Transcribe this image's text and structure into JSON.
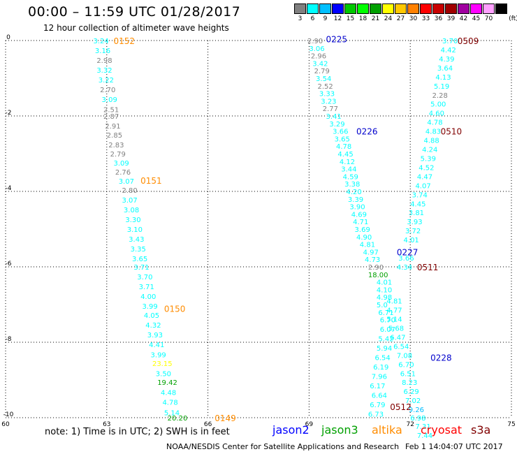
{
  "header": {
    "title": "00:00 – 11:59 UTC 01/28/2017",
    "subtitle": "12 hour collection of altimeter wave heights"
  },
  "legend": {
    "units": "(ft)",
    "bins": [
      {
        "label": "3",
        "color": "#808080"
      },
      {
        "label": "6",
        "color": "#00ffff"
      },
      {
        "label": "9",
        "color": "#00bfff"
      },
      {
        "label": "12",
        "color": "#0000ff"
      },
      {
        "label": "15",
        "color": "#00c800"
      },
      {
        "label": "18",
        "color": "#00ff00"
      },
      {
        "label": "21",
        "color": "#00a000"
      },
      {
        "label": "24",
        "color": "#ffff00"
      },
      {
        "label": "27",
        "color": "#ffc800"
      },
      {
        "label": "30",
        "color": "#ff8000"
      },
      {
        "label": "33",
        "color": "#ff0000"
      },
      {
        "label": "36",
        "color": "#c80000"
      },
      {
        "label": "39",
        "color": "#a00000"
      },
      {
        "label": "42",
        "color": "#a000a0"
      },
      {
        "label": "45",
        "color": "#ff00ff"
      },
      {
        "label": "70",
        "color": "#ffa0ff"
      },
      {
        "label": "",
        "color": "#000000"
      }
    ]
  },
  "axes": {
    "x_ticks": [
      "60",
      "63",
      "66",
      "69",
      "72",
      "75"
    ],
    "y_ticks": [
      "0",
      "-2",
      "-4",
      "-6",
      "-8",
      "-10"
    ],
    "x_values": [
      60,
      63,
      66,
      69,
      72,
      75
    ],
    "y_values": [
      0,
      -2,
      -4,
      -6,
      -8,
      -10
    ],
    "xlim": [
      60,
      75
    ],
    "ylim": [
      -10,
      0
    ]
  },
  "passes": [
    {
      "label": "0152",
      "color": "#ff8c00",
      "lon": 63.2,
      "lat": 0.0
    },
    {
      "label": "0151",
      "color": "#ff8c00",
      "lon": 64.0,
      "lat": -3.7
    },
    {
      "label": "0150",
      "color": "#ff8c00",
      "lon": 64.7,
      "lat": -7.1
    },
    {
      "label": "0149",
      "color": "#ff8c00",
      "lon": 66.2,
      "lat": -10.0
    },
    {
      "label": "0225",
      "color": "#0000cc",
      "lon": 69.5,
      "lat": 0.05
    },
    {
      "label": "0226",
      "color": "#0000cc",
      "lon": 70.4,
      "lat": -2.4
    },
    {
      "label": "0227",
      "color": "#0000cc",
      "lon": 71.6,
      "lat": -5.6
    },
    {
      "label": "0228",
      "color": "#0000cc",
      "lon": 72.6,
      "lat": -8.4
    },
    {
      "label": "0509",
      "color": "#800000",
      "lon": 73.4,
      "lat": 0.0
    },
    {
      "label": "0510",
      "color": "#800000",
      "lon": 72.9,
      "lat": -2.4
    },
    {
      "label": "0511",
      "color": "#800000",
      "lon": 72.2,
      "lat": -6.0
    },
    {
      "label": "0512",
      "color": "#800000",
      "lon": 71.4,
      "lat": -9.7
    }
  ],
  "tracks": [
    {
      "name": "track-0152",
      "points": [
        {
          "v": "3.24",
          "lon": 62.6,
          "lat": 0.0,
          "c": "#00ffff"
        },
        {
          "v": "3.16",
          "lon": 62.65,
          "lat": -0.26,
          "c": "#00ffff"
        },
        {
          "v": "2.98",
          "lon": 62.7,
          "lat": -0.52,
          "c": "#808080"
        },
        {
          "v": "3.32",
          "lon": 62.7,
          "lat": -0.78,
          "c": "#00ffff"
        },
        {
          "v": "3.22",
          "lon": 62.75,
          "lat": -1.04,
          "c": "#00ffff"
        },
        {
          "v": "2.70",
          "lon": 62.8,
          "lat": -1.3,
          "c": "#808080"
        },
        {
          "v": "3.09",
          "lon": 62.85,
          "lat": -1.56,
          "c": "#00ffff"
        },
        {
          "v": "2.51",
          "lon": 62.9,
          "lat": -1.82,
          "c": "#808080"
        },
        {
          "v": "2.87",
          "lon": 62.9,
          "lat": -2.0,
          "c": "#808080"
        },
        {
          "v": "2.91",
          "lon": 62.95,
          "lat": -2.26,
          "c": "#808080"
        },
        {
          "v": "2.85",
          "lon": 63.0,
          "lat": -2.5,
          "c": "#808080"
        },
        {
          "v": "2.83",
          "lon": 63.05,
          "lat": -2.76,
          "c": "#808080"
        },
        {
          "v": "2.79",
          "lon": 63.1,
          "lat": -3.0,
          "c": "#808080"
        }
      ]
    },
    {
      "name": "track-0151",
      "points": [
        {
          "v": "3.09",
          "lon": 63.2,
          "lat": -3.24,
          "c": "#00ffff"
        },
        {
          "v": "2.76",
          "lon": 63.25,
          "lat": -3.48,
          "c": "#808080"
        },
        {
          "v": "3.07",
          "lon": 63.35,
          "lat": -3.72,
          "c": "#00ffff"
        },
        {
          "v": "2.80",
          "lon": 63.45,
          "lat": -3.96,
          "c": "#808080"
        },
        {
          "v": "3.07",
          "lon": 63.45,
          "lat": -4.22,
          "c": "#00ffff"
        },
        {
          "v": "3.08",
          "lon": 63.5,
          "lat": -4.48,
          "c": "#00ffff"
        },
        {
          "v": "3.30",
          "lon": 63.55,
          "lat": -4.74,
          "c": "#00ffff"
        },
        {
          "v": "3.10",
          "lon": 63.6,
          "lat": -5.0,
          "c": "#00ffff"
        },
        {
          "v": "3.43",
          "lon": 63.65,
          "lat": -5.26,
          "c": "#00ffff"
        },
        {
          "v": "3.35",
          "lon": 63.7,
          "lat": -5.52,
          "c": "#00ffff"
        },
        {
          "v": "3.65",
          "lon": 63.75,
          "lat": -5.78,
          "c": "#00ffff"
        },
        {
          "v": "3.71",
          "lon": 63.8,
          "lat": -6.0,
          "c": "#00ffff"
        }
      ]
    },
    {
      "name": "track-0150",
      "points": [
        {
          "v": "3.70",
          "lon": 63.9,
          "lat": -6.26,
          "c": "#00ffff"
        },
        {
          "v": "3.71",
          "lon": 63.95,
          "lat": -6.52,
          "c": "#00ffff"
        },
        {
          "v": "4.00",
          "lon": 64.0,
          "lat": -6.78,
          "c": "#00ffff"
        },
        {
          "v": "3.99",
          "lon": 64.05,
          "lat": -7.04,
          "c": "#00ffff"
        },
        {
          "v": "4.05",
          "lon": 64.1,
          "lat": -7.28,
          "c": "#00ffff"
        },
        {
          "v": "4.32",
          "lon": 64.15,
          "lat": -7.54,
          "c": "#00ffff"
        },
        {
          "v": "3.93",
          "lon": 64.2,
          "lat": -7.8,
          "c": "#00ffff"
        },
        {
          "v": "4.41",
          "lon": 64.25,
          "lat": -8.06,
          "c": "#00ffff"
        },
        {
          "v": "3.99",
          "lon": 64.3,
          "lat": -8.32,
          "c": "#00ffff"
        },
        {
          "v": "23.15",
          "lon": 64.35,
          "lat": -8.56,
          "c": "#ffff00"
        },
        {
          "v": "3.50",
          "lon": 64.45,
          "lat": -8.82,
          "c": "#00ffff"
        },
        {
          "v": "19.42",
          "lon": 64.5,
          "lat": -9.06,
          "c": "#00a000"
        },
        {
          "v": "4.48",
          "lon": 64.6,
          "lat": -9.32,
          "c": "#00ffff"
        },
        {
          "v": "4.78",
          "lon": 64.65,
          "lat": -9.58,
          "c": "#00ffff"
        },
        {
          "v": "5.14",
          "lon": 64.7,
          "lat": -9.86,
          "c": "#00ffff"
        },
        {
          "v": "20.20",
          "lon": 64.8,
          "lat": -10.0,
          "c": "#00a000"
        }
      ]
    },
    {
      "name": "track-0225",
      "points": [
        {
          "v": "2.90",
          "lon": 68.95,
          "lat": 0.0,
          "c": "#808080"
        },
        {
          "v": "3.06",
          "lon": 69.0,
          "lat": -0.2,
          "c": "#00ffff"
        },
        {
          "v": "2.96",
          "lon": 69.05,
          "lat": -0.4,
          "c": "#808080"
        },
        {
          "v": "3.42",
          "lon": 69.1,
          "lat": -0.6,
          "c": "#00ffff"
        },
        {
          "v": "2.79",
          "lon": 69.15,
          "lat": -0.8,
          "c": "#808080"
        },
        {
          "v": "3.54",
          "lon": 69.2,
          "lat": -1.0,
          "c": "#00ffff"
        },
        {
          "v": "2.52",
          "lon": 69.25,
          "lat": -1.2,
          "c": "#808080"
        },
        {
          "v": "3.33",
          "lon": 69.3,
          "lat": -1.4,
          "c": "#00ffff"
        },
        {
          "v": "3.23",
          "lon": 69.35,
          "lat": -1.6,
          "c": "#00ffff"
        },
        {
          "v": "2.77",
          "lon": 69.4,
          "lat": -1.8,
          "c": "#808080"
        },
        {
          "v": "3.41",
          "lon": 69.5,
          "lat": -2.0,
          "c": "#00ffff"
        },
        {
          "v": "3.29",
          "lon": 69.6,
          "lat": -2.2,
          "c": "#00ffff"
        },
        {
          "v": "3.66",
          "lon": 69.7,
          "lat": -2.4,
          "c": "#00ffff"
        }
      ]
    },
    {
      "name": "track-0226",
      "points": [
        {
          "v": "3.65",
          "lon": 69.75,
          "lat": -2.6,
          "c": "#00ffff"
        },
        {
          "v": "4.78",
          "lon": 69.8,
          "lat": -2.8,
          "c": "#00ffff"
        },
        {
          "v": "4.45",
          "lon": 69.85,
          "lat": -3.0,
          "c": "#00ffff"
        },
        {
          "v": "4.12",
          "lon": 69.9,
          "lat": -3.2,
          "c": "#00ffff"
        },
        {
          "v": "3.44",
          "lon": 69.95,
          "lat": -3.4,
          "c": "#00ffff"
        },
        {
          "v": "4.59",
          "lon": 70.0,
          "lat": -3.6,
          "c": "#00ffff"
        },
        {
          "v": "3.38",
          "lon": 70.05,
          "lat": -3.8,
          "c": "#00ffff"
        },
        {
          "v": "4.20",
          "lon": 70.1,
          "lat": -4.0,
          "c": "#00ffff"
        },
        {
          "v": "3.39",
          "lon": 70.15,
          "lat": -4.2,
          "c": "#00ffff"
        },
        {
          "v": "3.90",
          "lon": 70.2,
          "lat": -4.4,
          "c": "#00ffff"
        },
        {
          "v": "4.69",
          "lon": 70.25,
          "lat": -4.6,
          "c": "#00ffff"
        },
        {
          "v": "4.71",
          "lon": 70.3,
          "lat": -4.8,
          "c": "#00ffff"
        },
        {
          "v": "3.69",
          "lon": 70.35,
          "lat": -5.0,
          "c": "#00ffff"
        },
        {
          "v": "4.90",
          "lon": 70.4,
          "lat": -5.2,
          "c": "#00ffff"
        },
        {
          "v": "4.81",
          "lon": 70.5,
          "lat": -5.4,
          "c": "#00ffff"
        },
        {
          "v": "4.97",
          "lon": 70.6,
          "lat": -5.6,
          "c": "#00ffff"
        },
        {
          "v": "4.73",
          "lon": 70.65,
          "lat": -5.8,
          "c": "#00ffff"
        },
        {
          "v": "2.90",
          "lon": 70.75,
          "lat": -6.0,
          "c": "#808080"
        },
        {
          "v": "18.00",
          "lon": 70.75,
          "lat": -6.2,
          "c": "#00a000"
        }
      ]
    },
    {
      "name": "track-0227",
      "points": [
        {
          "v": "4.01",
          "lon": 71.0,
          "lat": -6.4,
          "c": "#00ffff"
        },
        {
          "v": "4.10",
          "lon": 71.0,
          "lat": -6.6,
          "c": "#00ffff"
        },
        {
          "v": "4.98",
          "lon": 71.0,
          "lat": -6.8,
          "c": "#00ffff"
        },
        {
          "v": "5.0",
          "lon": 71.0,
          "lat": -7.0,
          "c": "#00ffff"
        },
        {
          "v": "6.71",
          "lon": 71.05,
          "lat": -7.2,
          "c": "#00ffff"
        },
        {
          "v": "6.70",
          "lon": 71.1,
          "lat": -7.4,
          "c": "#00ffff"
        },
        {
          "v": "6.07",
          "lon": 71.1,
          "lat": -7.65,
          "c": "#00ffff"
        },
        {
          "v": "5.42",
          "lon": 71.05,
          "lat": -7.9,
          "c": "#00ffff"
        },
        {
          "v": "5.94",
          "lon": 71.0,
          "lat": -8.15,
          "c": "#00ffff"
        },
        {
          "v": "6.54",
          "lon": 70.95,
          "lat": -8.4,
          "c": "#00ffff"
        },
        {
          "v": "6.19",
          "lon": 70.9,
          "lat": -8.65,
          "c": "#00ffff"
        },
        {
          "v": "7.96",
          "lon": 70.85,
          "lat": -8.9,
          "c": "#00ffff"
        },
        {
          "v": "6.17",
          "lon": 70.8,
          "lat": -9.15,
          "c": "#00ffff"
        },
        {
          "v": "6.64",
          "lon": 70.85,
          "lat": -9.4,
          "c": "#00ffff"
        },
        {
          "v": "6.79",
          "lon": 70.8,
          "lat": -9.65,
          "c": "#00ffff"
        },
        {
          "v": "6.73",
          "lon": 70.75,
          "lat": -9.9,
          "c": "#00ffff"
        }
      ]
    },
    {
      "name": "track-0509",
      "points": [
        {
          "v": "3.70",
          "lon": 72.95,
          "lat": 0.0,
          "c": "#00ffff"
        },
        {
          "v": "4.42",
          "lon": 72.9,
          "lat": -0.24,
          "c": "#00ffff"
        },
        {
          "v": "4.39",
          "lon": 72.85,
          "lat": -0.48,
          "c": "#00ffff"
        },
        {
          "v": "3.64",
          "lon": 72.8,
          "lat": -0.72,
          "c": "#00ffff"
        },
        {
          "v": "4.13",
          "lon": 72.75,
          "lat": -0.96,
          "c": "#00ffff"
        },
        {
          "v": "5.19",
          "lon": 72.7,
          "lat": -1.2,
          "c": "#00ffff"
        },
        {
          "v": "2.28",
          "lon": 72.65,
          "lat": -1.44,
          "c": "#808080"
        },
        {
          "v": "5.00",
          "lon": 72.6,
          "lat": -1.68,
          "c": "#00ffff"
        },
        {
          "v": "4.60",
          "lon": 72.55,
          "lat": -1.92,
          "c": "#00ffff"
        },
        {
          "v": "4.78",
          "lon": 72.5,
          "lat": -2.16,
          "c": "#00ffff"
        },
        {
          "v": "4.83",
          "lon": 72.45,
          "lat": -2.4,
          "c": "#00ffff"
        }
      ]
    },
    {
      "name": "track-0510",
      "points": [
        {
          "v": "4.88",
          "lon": 72.4,
          "lat": -2.64,
          "c": "#00ffff"
        },
        {
          "v": "4.24",
          "lon": 72.35,
          "lat": -2.88,
          "c": "#00ffff"
        },
        {
          "v": "5.39",
          "lon": 72.3,
          "lat": -3.12,
          "c": "#00ffff"
        },
        {
          "v": "4.52",
          "lon": 72.25,
          "lat": -3.36,
          "c": "#00ffff"
        },
        {
          "v": "4.47",
          "lon": 72.2,
          "lat": -3.6,
          "c": "#00ffff"
        },
        {
          "v": "4.07",
          "lon": 72.15,
          "lat": -3.84,
          "c": "#00ffff"
        },
        {
          "v": "3.74",
          "lon": 72.05,
          "lat": -4.08,
          "c": "#00ffff"
        },
        {
          "v": "4.45",
          "lon": 72.0,
          "lat": -4.32,
          "c": "#00ffff"
        },
        {
          "v": "3.81",
          "lon": 71.95,
          "lat": -4.56,
          "c": "#00ffff"
        },
        {
          "v": "3.93",
          "lon": 71.9,
          "lat": -4.8,
          "c": "#00ffff"
        },
        {
          "v": "3.72",
          "lon": 71.85,
          "lat": -5.04,
          "c": "#00ffff"
        },
        {
          "v": "4.01",
          "lon": 71.8,
          "lat": -5.28,
          "c": "#00ffff"
        },
        {
          "v": "3.66",
          "lon": 71.65,
          "lat": -5.76,
          "c": "#00ffff"
        },
        {
          "v": "4.34",
          "lon": 71.6,
          "lat": -6.0,
          "c": "#00ffff"
        }
      ]
    },
    {
      "name": "track-0511",
      "points": [
        {
          "v": "4.81",
          "lon": 71.3,
          "lat": -6.9,
          "c": "#00ffff"
        },
        {
          "v": "4.77",
          "lon": 71.3,
          "lat": -7.14,
          "c": "#00ffff"
        },
        {
          "v": "5.14",
          "lon": 71.3,
          "lat": -7.38,
          "c": "#00ffff"
        },
        {
          "v": "5.68",
          "lon": 71.35,
          "lat": -7.62,
          "c": "#00ffff"
        },
        {
          "v": "6.47",
          "lon": 71.4,
          "lat": -7.86,
          "c": "#00ffff"
        },
        {
          "v": "6.54",
          "lon": 71.5,
          "lat": -8.1,
          "c": "#00ffff"
        },
        {
          "v": "7.08",
          "lon": 71.6,
          "lat": -8.34,
          "c": "#00ffff"
        },
        {
          "v": "6.70",
          "lon": 71.65,
          "lat": -8.58,
          "c": "#00ffff"
        },
        {
          "v": "6.51",
          "lon": 71.7,
          "lat": -8.82,
          "c": "#00ffff"
        },
        {
          "v": "8.23",
          "lon": 71.75,
          "lat": -9.06,
          "c": "#00ffff"
        },
        {
          "v": "6.29",
          "lon": 71.8,
          "lat": -9.3,
          "c": "#00ffff"
        },
        {
          "v": "7.02",
          "lon": 71.85,
          "lat": -9.54,
          "c": "#00ffff"
        },
        {
          "v": "9.26",
          "lon": 71.95,
          "lat": -9.78,
          "c": "#00bfff"
        },
        {
          "v": "6.98",
          "lon": 72.0,
          "lat": -10.0,
          "c": "#00ffff"
        }
      ]
    },
    {
      "name": "track-0512",
      "points": [
        {
          "v": "7.31",
          "lon": 72.15,
          "lat": -10.22,
          "c": "#00ffff"
        },
        {
          "v": "7.44",
          "lon": 72.2,
          "lat": -10.46,
          "c": "#00ffff"
        }
      ]
    }
  ],
  "footer": {
    "note": "note:  1) Time is in UTC;  2) SWH is in feet",
    "satellites": [
      {
        "label": "jason2",
        "color": "#0000ff"
      },
      {
        "label": "jason3",
        "color": "#00a000"
      },
      {
        "label": "altika",
        "color": "#ff8c00"
      },
      {
        "label": "cryosat",
        "color": "#ff0000"
      },
      {
        "label": "s3a",
        "color": "#800000"
      }
    ],
    "credit": "NOAA/NESDIS Center for Satellite Applications and Research",
    "timestamp": "Feb  1 14:04:07 UTC 2017"
  }
}
